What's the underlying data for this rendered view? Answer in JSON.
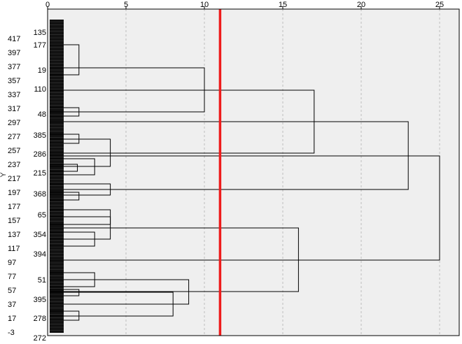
{
  "chart_data": {
    "type": "dendrogram",
    "title": "",
    "xlabel": "",
    "ylabel": "Y",
    "xlim": [
      0,
      26.5
    ],
    "x_ticks": [
      0,
      5,
      10,
      15,
      20,
      25
    ],
    "y_ticks": [
      417,
      397,
      377,
      357,
      337,
      317,
      297,
      277,
      257,
      237,
      217,
      197,
      177,
      157,
      137,
      117,
      97,
      77,
      57,
      37,
      17,
      -3
    ],
    "ylim": [
      -3,
      437
    ],
    "leaf_labels": [
      {
        "label": "135",
        "y": 426
      },
      {
        "label": "177",
        "y": 408
      },
      {
        "label": "19",
        "y": 372
      },
      {
        "label": "110",
        "y": 345
      },
      {
        "label": "48",
        "y": 309
      },
      {
        "label": "385",
        "y": 279
      },
      {
        "label": "286",
        "y": 252
      },
      {
        "label": "215",
        "y": 225
      },
      {
        "label": "368",
        "y": 195
      },
      {
        "label": "65",
        "y": 165
      },
      {
        "label": "354",
        "y": 137
      },
      {
        "label": "394",
        "y": 109
      },
      {
        "label": "51",
        "y": 72
      },
      {
        "label": "395",
        "y": 44
      },
      {
        "label": "278",
        "y": 17
      },
      {
        "label": "272",
        "y": -11
      }
    ],
    "merges": [
      {
        "height": 2,
        "y_low": 365,
        "y_high": 408
      },
      {
        "height": 10,
        "y_low": 312,
        "y_high": 375
      },
      {
        "height": 2,
        "y_low": 306,
        "y_high": 318
      },
      {
        "height": 2,
        "y_low": 267,
        "y_high": 280
      },
      {
        "height": 1.9,
        "y_low": 227,
        "y_high": 237
      },
      {
        "height": 3,
        "y_low": 222,
        "y_high": 245
      },
      {
        "height": 4,
        "y_low": 234,
        "y_high": 273
      },
      {
        "height": 2,
        "y_low": 186,
        "y_high": 197
      },
      {
        "height": 4,
        "y_low": 193,
        "y_high": 209
      },
      {
        "height": 17,
        "y_low": 253,
        "y_high": 343
      },
      {
        "height": 4,
        "y_low": 151,
        "y_high": 172
      },
      {
        "height": 3,
        "y_low": 120,
        "y_high": 140
      },
      {
        "height": 4,
        "y_low": 130,
        "y_high": 162
      },
      {
        "height": 3,
        "y_low": 62,
        "y_high": 82
      },
      {
        "height": 2,
        "y_low": 49,
        "y_high": 58
      },
      {
        "height": 2,
        "y_low": 14,
        "y_high": 27
      },
      {
        "height": 8,
        "y_low": 20,
        "y_high": 54
      },
      {
        "height": 9,
        "y_low": 37,
        "y_high": 72
      },
      {
        "height": 16,
        "y_low": 55,
        "y_high": 146
      },
      {
        "height": 23,
        "y_low": 201,
        "y_high": 298
      },
      {
        "height": 25,
        "y_low": 100,
        "y_high": 249
      }
    ],
    "threshold": 11,
    "threshold_color": "#ee1c1c",
    "grid": "vertical-dashed",
    "plot_background": "#efefef",
    "leaf_strip_color": "#111111",
    "line_color": "#000000"
  }
}
